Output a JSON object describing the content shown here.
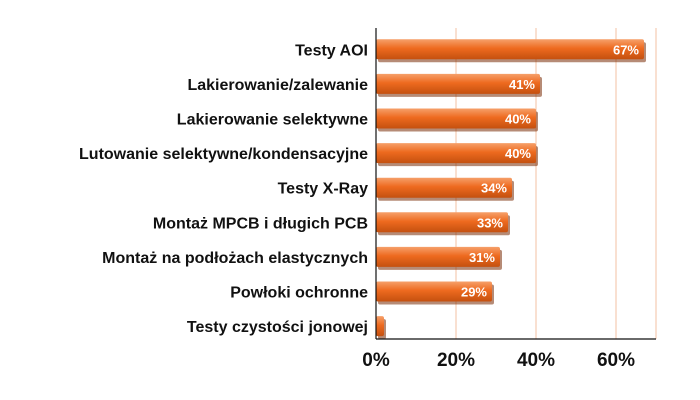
{
  "chart_data": {
    "type": "bar",
    "orientation": "horizontal",
    "categories": [
      "Testy AOI",
      "Lakierowanie/zalewanie",
      "Lakierowanie selektywne",
      "Lutowanie selektywne/kondensacyjne",
      "Testy X-Ray",
      "Montaż MPCB i długich PCB",
      "Montaż na podłożach elastycznych",
      "Powłoki ochronne",
      "Testy czystości jonowej"
    ],
    "values": [
      67,
      41,
      40,
      40,
      34,
      33,
      31,
      29,
      2
    ],
    "data_labels": [
      "67%",
      "41%",
      "40%",
      "40%",
      "34%",
      "33%",
      "31%",
      "29%",
      ""
    ],
    "x_ticks": [
      "0%",
      "20%",
      "40%",
      "60%"
    ],
    "x_tick_values": [
      0,
      20,
      40,
      60
    ],
    "xlim": [
      0,
      70
    ],
    "grid": true,
    "colors": {
      "bar": "#ee6a1f",
      "bar_light": "#f6a06a",
      "bar_dark": "#c4500f",
      "shadow": "#7a2c06",
      "grid": "#f3c2a3",
      "axis": "#111111"
    }
  }
}
